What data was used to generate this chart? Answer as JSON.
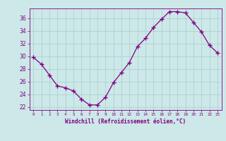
{
  "x": [
    0,
    1,
    2,
    3,
    4,
    5,
    6,
    7,
    8,
    9,
    10,
    11,
    12,
    13,
    14,
    15,
    16,
    17,
    18,
    19,
    20,
    21,
    22,
    23
  ],
  "y": [
    29.8,
    28.7,
    27.0,
    25.3,
    25.0,
    24.5,
    23.2,
    22.3,
    22.3,
    23.5,
    25.8,
    27.4,
    29.0,
    31.5,
    32.8,
    34.5,
    35.8,
    37.0,
    37.0,
    36.8,
    35.3,
    33.8,
    31.7,
    30.5
  ],
  "xlim": [
    -0.5,
    23.5
  ],
  "ylim": [
    21.5,
    37.5
  ],
  "yticks": [
    22,
    24,
    26,
    28,
    30,
    32,
    34,
    36
  ],
  "xtick_labels": [
    "0",
    "1",
    "2",
    "3",
    "4",
    "5",
    "6",
    "7",
    "8",
    "9",
    "10",
    "11",
    "12",
    "13",
    "14",
    "15",
    "16",
    "17",
    "18",
    "19",
    "20",
    "21",
    "22",
    "23"
  ],
  "xlabel": "Windchill (Refroidissement éolien,°C)",
  "line_color": "#800080",
  "marker": "+",
  "marker_size": 4,
  "bg_color": "#cce8e8",
  "grid_color": "#aacccc",
  "axis_color": "#800080",
  "tick_color": "#800080",
  "label_color": "#800080",
  "title": ""
}
